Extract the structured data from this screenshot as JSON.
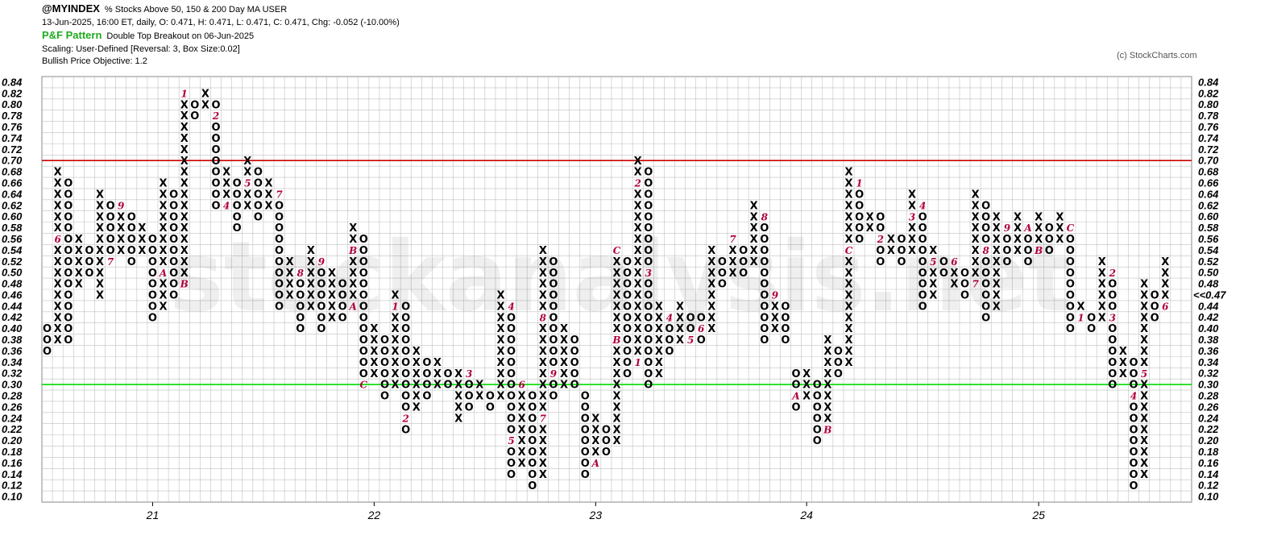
{
  "header": {
    "symbol": "@MYINDEX",
    "description": "% Stocks Above 50, 150 & 200 Day MA  USER",
    "line2": "13-Jun-2025, 16:00 ET, daily, O: 0.471, H: 0.471, L: 0.471, C: 0.471, Chg: -0.052 (-10.00%)",
    "pattern_label": "P&F Pattern",
    "pattern_value": "Double Top Breakout on 06-Jun-2025",
    "scaling": "Scaling: User-Defined [Reversal: 3, Box Size:0.02]",
    "objective": "Bullish Price Objective: 1.2",
    "copyright": "(c) StockCharts.com"
  },
  "watermark": "stockanalysis.net",
  "colors": {
    "resistance": "#cc0000",
    "support": "#00dd00",
    "month_marker": "#b0003c",
    "current_price": "#b0003c",
    "grid": "#c0c0c0"
  },
  "chart_data": {
    "type": "point-and-figure",
    "box_size": 0.02,
    "reversal": 3,
    "ylim": [
      0.1,
      0.84
    ],
    "y_ticks": [
      "0.84",
      "0.82",
      "0.80",
      "0.78",
      "0.76",
      "0.74",
      "0.72",
      "0.70",
      "0.68",
      "0.66",
      "0.64",
      "0.62",
      "0.60",
      "0.58",
      "0.56",
      "0.54",
      "0.52",
      "0.50",
      "0.48",
      "0.46",
      "0.44",
      "0.42",
      "0.40",
      "0.38",
      "0.36",
      "0.34",
      "0.32",
      "0.30",
      "0.28",
      "0.26",
      "0.24",
      "0.22",
      "0.20",
      "0.18",
      "0.16",
      "0.14",
      "0.12",
      "0.10"
    ],
    "x_labels": [
      {
        "col": 10.5,
        "label": "21"
      },
      {
        "col": 31.5,
        "label": "22"
      },
      {
        "col": 52.5,
        "label": "23"
      },
      {
        "col": 72.5,
        "label": "24"
      },
      {
        "col": 94.5,
        "label": "25"
      }
    ],
    "current_price_label": "<<0.47",
    "horizontal_lines": [
      {
        "name": "resistance",
        "value": 0.7
      },
      {
        "name": "support",
        "value": 0.3
      }
    ],
    "columns": [
      {
        "t": "O",
        "lo": 0.36,
        "hi": 0.4
      },
      {
        "t": "X",
        "lo": 0.38,
        "hi": 0.68,
        "m": {
          "0.56": "6"
        }
      },
      {
        "t": "O",
        "lo": 0.38,
        "hi": 0.66
      },
      {
        "t": "X",
        "lo": 0.48,
        "hi": 0.56
      },
      {
        "t": "O",
        "lo": 0.5,
        "hi": 0.54
      },
      {
        "t": "X",
        "lo": 0.46,
        "hi": 0.64
      },
      {
        "t": "O",
        "lo": 0.52,
        "hi": 0.62,
        "m": {
          "0.52": "7"
        }
      },
      {
        "t": "X",
        "lo": 0.54,
        "hi": 0.62,
        "m": {
          "0.62": "9"
        }
      },
      {
        "t": "O",
        "lo": 0.52,
        "hi": 0.6
      },
      {
        "t": "X",
        "lo": 0.54,
        "hi": 0.58
      },
      {
        "t": "O",
        "lo": 0.42,
        "hi": 0.56
      },
      {
        "t": "X",
        "lo": 0.44,
        "hi": 0.66,
        "m": {
          "0.50": "A"
        }
      },
      {
        "t": "O",
        "lo": 0.46,
        "hi": 0.64
      },
      {
        "t": "X",
        "lo": 0.48,
        "hi": 0.82,
        "m": {
          "0.48": "B",
          "0.82": "1"
        }
      },
      {
        "t": "O",
        "lo": 0.78,
        "hi": 0.8
      },
      {
        "t": "X",
        "lo": 0.8,
        "hi": 0.82
      },
      {
        "t": "O",
        "lo": 0.62,
        "hi": 0.8,
        "m": {
          "0.78": "2"
        }
      },
      {
        "t": "X",
        "lo": 0.64,
        "hi": 0.68,
        "m": {
          "0.62": "4"
        }
      },
      {
        "t": "O",
        "lo": 0.58,
        "hi": 0.66
      },
      {
        "t": "X",
        "lo": 0.62,
        "hi": 0.7,
        "m": {
          "0.66": "5"
        }
      },
      {
        "t": "O",
        "lo": 0.6,
        "hi": 0.68
      },
      {
        "t": "X",
        "lo": 0.62,
        "hi": 0.66
      },
      {
        "t": "O",
        "lo": 0.44,
        "hi": 0.64,
        "m": {
          "0.64": "7"
        }
      },
      {
        "t": "X",
        "lo": 0.46,
        "hi": 0.52
      },
      {
        "t": "O",
        "lo": 0.4,
        "hi": 0.5,
        "m": {
          "0.50": "8"
        }
      },
      {
        "t": "X",
        "lo": 0.44,
        "hi": 0.54
      },
      {
        "t": "O",
        "lo": 0.4,
        "hi": 0.52,
        "m": {
          "0.52": "9"
        }
      },
      {
        "t": "X",
        "lo": 0.42,
        "hi": 0.5
      },
      {
        "t": "O",
        "lo": 0.42,
        "hi": 0.48
      },
      {
        "t": "X",
        "lo": 0.44,
        "hi": 0.58,
        "m": {
          "0.44": "A",
          "0.54": "B"
        }
      },
      {
        "t": "O",
        "lo": 0.3,
        "hi": 0.56,
        "m": {
          "0.30": "C"
        }
      },
      {
        "t": "X",
        "lo": 0.32,
        "hi": 0.4
      },
      {
        "t": "O",
        "lo": 0.28,
        "hi": 0.38
      },
      {
        "t": "X",
        "lo": 0.3,
        "hi": 0.46,
        "m": {
          "0.44": "1"
        }
      },
      {
        "t": "O",
        "lo": 0.22,
        "hi": 0.44,
        "m": {
          "0.24": "2"
        }
      },
      {
        "t": "X",
        "lo": 0.26,
        "hi": 0.36
      },
      {
        "t": "O",
        "lo": 0.28,
        "hi": 0.34
      },
      {
        "t": "X",
        "lo": 0.3,
        "hi": 0.34
      },
      {
        "t": "O",
        "lo": 0.3,
        "hi": 0.32
      },
      {
        "t": "X",
        "lo": 0.24,
        "hi": 0.32
      },
      {
        "t": "O",
        "lo": 0.26,
        "hi": 0.32,
        "m": {
          "0.32": "3"
        }
      },
      {
        "t": "X",
        "lo": 0.28,
        "hi": 0.3
      },
      {
        "t": "O",
        "lo": 0.26,
        "hi": 0.28
      },
      {
        "t": "X",
        "lo": 0.28,
        "hi": 0.46
      },
      {
        "t": "O",
        "lo": 0.14,
        "hi": 0.44,
        "m": {
          "0.44": "4",
          "0.20": "5"
        }
      },
      {
        "t": "X",
        "lo": 0.16,
        "hi": 0.28,
        "m": {
          "0.30": "6"
        }
      },
      {
        "t": "O",
        "lo": 0.12,
        "hi": 0.28
      },
      {
        "t": "X",
        "lo": 0.14,
        "hi": 0.54,
        "m": {
          "0.24": "7",
          "0.42": "8"
        }
      },
      {
        "t": "O",
        "lo": 0.28,
        "hi": 0.52,
        "m": {
          "0.32": "9"
        }
      },
      {
        "t": "X",
        "lo": 0.3,
        "hi": 0.4
      },
      {
        "t": "O",
        "lo": 0.3,
        "hi": 0.38
      },
      {
        "t": "O",
        "lo": 0.14,
        "hi": 0.28
      },
      {
        "t": "X",
        "lo": 0.16,
        "hi": 0.24,
        "m": {
          "0.16": "A"
        }
      },
      {
        "t": "O",
        "lo": 0.18,
        "hi": 0.22
      },
      {
        "t": "X",
        "lo": 0.2,
        "hi": 0.54,
        "m": {
          "0.38": "B",
          "0.54": "C"
        }
      },
      {
        "t": "O",
        "lo": 0.32,
        "hi": 0.52
      },
      {
        "t": "X",
        "lo": 0.34,
        "hi": 0.7,
        "m": {
          "0.34": "1",
          "0.66": "2"
        }
      },
      {
        "t": "O",
        "lo": 0.3,
        "hi": 0.68,
        "m": {
          "0.50": "3"
        }
      },
      {
        "t": "X",
        "lo": 0.32,
        "hi": 0.44
      },
      {
        "t": "O",
        "lo": 0.36,
        "hi": 0.42,
        "m": {
          "0.42": "4"
        }
      },
      {
        "t": "X",
        "lo": 0.38,
        "hi": 0.44
      },
      {
        "t": "O",
        "lo": 0.38,
        "hi": 0.42,
        "m": {
          "0.38": "5"
        }
      },
      {
        "t": "O",
        "lo": 0.38,
        "hi": 0.42,
        "m": {
          "0.40": "6"
        }
      },
      {
        "t": "X",
        "lo": 0.4,
        "hi": 0.54
      },
      {
        "t": "O",
        "lo": 0.48,
        "hi": 0.52
      },
      {
        "t": "X",
        "lo": 0.5,
        "hi": 0.56,
        "m": {
          "0.56": "7"
        }
      },
      {
        "t": "O",
        "lo": 0.5,
        "hi": 0.54
      },
      {
        "t": "X",
        "lo": 0.52,
        "hi": 0.62
      },
      {
        "t": "O",
        "lo": 0.38,
        "hi": 0.6,
        "m": {
          "0.60": "8"
        }
      },
      {
        "t": "X",
        "lo": 0.4,
        "hi": 0.44,
        "m": {
          "0.46": "9"
        }
      },
      {
        "t": "O",
        "lo": 0.38,
        "hi": 0.44
      },
      {
        "t": "O",
        "lo": 0.26,
        "hi": 0.32,
        "m": {
          "0.28": "A"
        }
      },
      {
        "t": "X",
        "lo": 0.28,
        "hi": 0.32
      },
      {
        "t": "O",
        "lo": 0.2,
        "hi": 0.3
      },
      {
        "t": "X",
        "lo": 0.22,
        "hi": 0.38,
        "m": {
          "0.22": "B"
        }
      },
      {
        "t": "O",
        "lo": 0.32,
        "hi": 0.36
      },
      {
        "t": "X",
        "lo": 0.34,
        "hi": 0.68,
        "m": {
          "0.54": "C"
        }
      },
      {
        "t": "O",
        "lo": 0.56,
        "hi": 0.66,
        "m": {
          "0.66": "1"
        }
      },
      {
        "t": "X",
        "lo": 0.58,
        "hi": 0.6
      },
      {
        "t": "O",
        "lo": 0.52,
        "hi": 0.6,
        "m": {
          "0.56": "2"
        }
      },
      {
        "t": "X",
        "lo": 0.54,
        "hi": 0.56
      },
      {
        "t": "O",
        "lo": 0.52,
        "hi": 0.56
      },
      {
        "t": "X",
        "lo": 0.54,
        "hi": 0.64,
        "m": {
          "0.60": "3"
        }
      },
      {
        "t": "O",
        "lo": 0.44,
        "hi": 0.62,
        "m": {
          "0.62": "4"
        }
      },
      {
        "t": "X",
        "lo": 0.46,
        "hi": 0.54,
        "m": {
          "0.52": "5"
        }
      },
      {
        "t": "O",
        "lo": 0.5,
        "hi": 0.52
      },
      {
        "t": "X",
        "lo": 0.48,
        "hi": 0.52,
        "m": {
          "0.52": "6"
        }
      },
      {
        "t": "O",
        "lo": 0.46,
        "hi": 0.5
      },
      {
        "t": "X",
        "lo": 0.48,
        "hi": 0.64,
        "m": {
          "0.48": "7"
        }
      },
      {
        "t": "O",
        "lo": 0.42,
        "hi": 0.62,
        "m": {
          "0.54": "8"
        }
      },
      {
        "t": "X",
        "lo": 0.44,
        "hi": 0.6
      },
      {
        "t": "O",
        "lo": 0.52,
        "hi": 0.58,
        "m": {
          "0.58": "9"
        }
      },
      {
        "t": "X",
        "lo": 0.54,
        "hi": 0.6
      },
      {
        "t": "O",
        "lo": 0.52,
        "hi": 0.58,
        "m": {
          "0.58": "A"
        }
      },
      {
        "t": "X",
        "lo": 0.54,
        "hi": 0.6,
        "m": {
          "0.54": "B"
        }
      },
      {
        "t": "O",
        "lo": 0.54,
        "hi": 0.58
      },
      {
        "t": "X",
        "lo": 0.56,
        "hi": 0.6
      },
      {
        "t": "O",
        "lo": 0.4,
        "hi": 0.58,
        "m": {
          "0.58": "C"
        }
      },
      {
        "t": "X",
        "lo": 0.42,
        "hi": 0.44,
        "m": {
          "0.42": "1"
        }
      },
      {
        "t": "O",
        "lo": 0.4,
        "hi": 0.42
      },
      {
        "t": "X",
        "lo": 0.42,
        "hi": 0.52
      },
      {
        "t": "O",
        "lo": 0.3,
        "hi": 0.5,
        "m": {
          "0.50": "2",
          "0.42": "3"
        }
      },
      {
        "t": "X",
        "lo": 0.32,
        "hi": 0.36
      },
      {
        "t": "O",
        "lo": 0.12,
        "hi": 0.34,
        "m": {
          "0.28": "4"
        }
      },
      {
        "t": "X",
        "lo": 0.14,
        "hi": 0.48,
        "m": {
          "0.32": "5"
        }
      },
      {
        "t": "O",
        "lo": 0.42,
        "hi": 0.46
      },
      {
        "t": "X",
        "lo": 0.44,
        "hi": 0.52,
        "m": {
          "0.44": "6"
        }
      }
    ]
  }
}
